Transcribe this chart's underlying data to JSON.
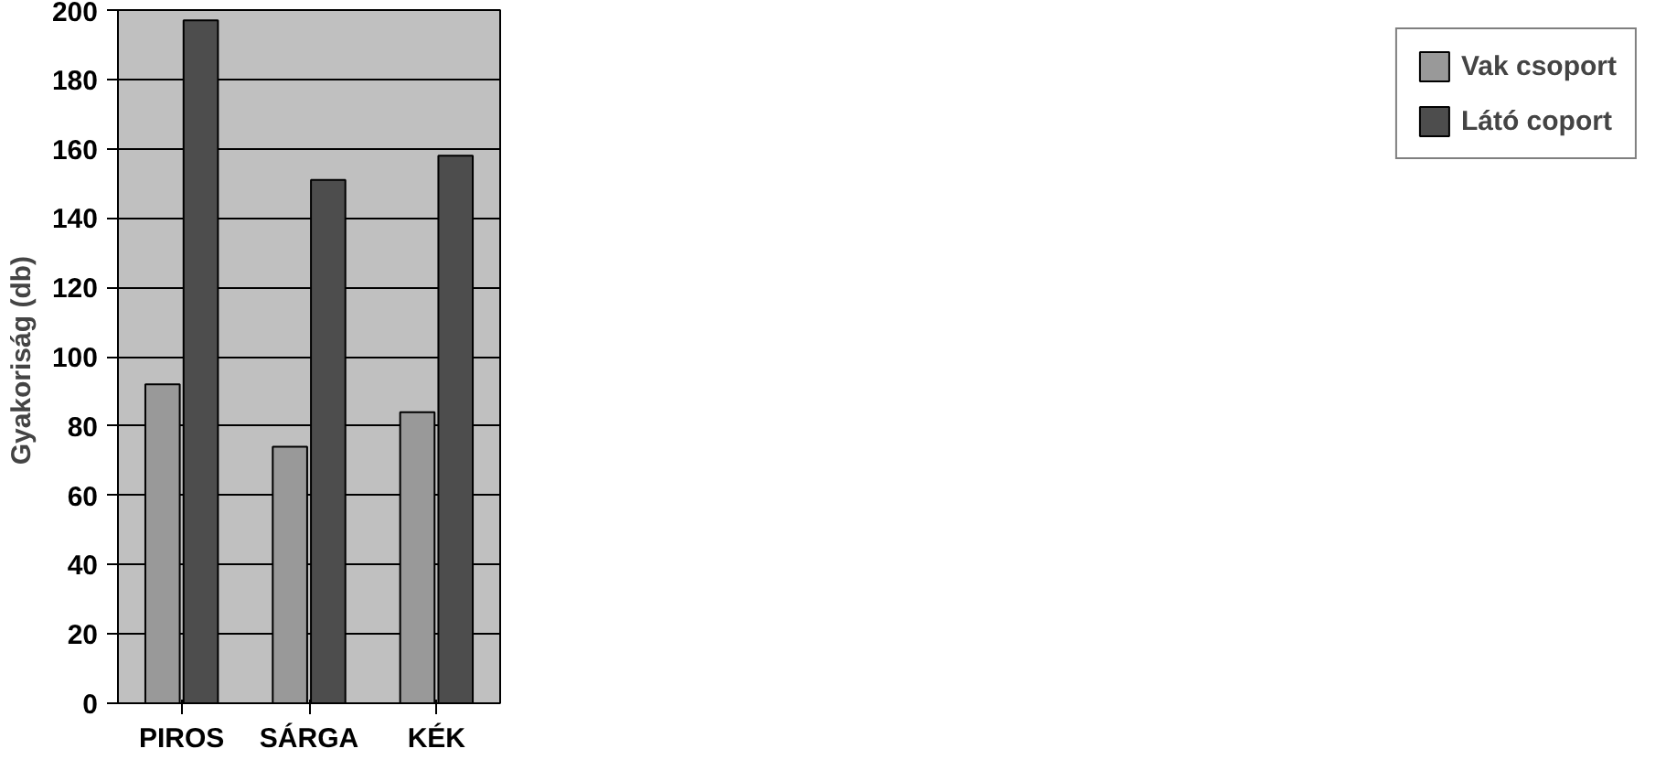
{
  "chart_data": {
    "type": "bar",
    "ylabel": "Gyakoriság  (db)",
    "categories": [
      "PIROS",
      "SÁRGA",
      "KÉK"
    ],
    "series": [
      {
        "name": "Vak csoport",
        "color": "#999999",
        "values": [
          92,
          74,
          84
        ]
      },
      {
        "name": "Látó coport",
        "color": "#4d4d4d",
        "values": [
          197,
          151,
          158
        ]
      }
    ],
    "ylim": [
      0,
      200
    ],
    "yticks": [
      0,
      20,
      40,
      60,
      80,
      100,
      120,
      140,
      160,
      180,
      200
    ],
    "grid": "y",
    "legend": "right"
  }
}
